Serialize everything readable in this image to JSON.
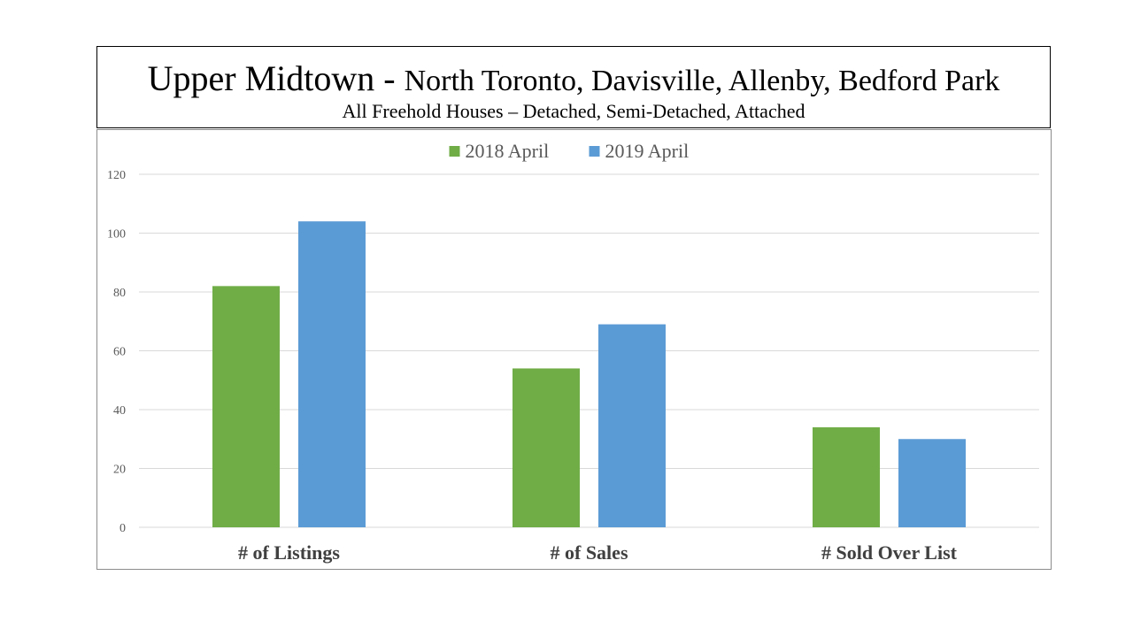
{
  "header": {
    "title_main": "Upper Midtown - ",
    "title_rest": "North Toronto, Davisville, Allenby, Bedford Park",
    "subtitle": "All Freehold Houses – Detached, Semi-Detached, Attached"
  },
  "chart_data": {
    "type": "bar",
    "title": "Upper Midtown - North Toronto, Davisville, Allenby, Bedford Park",
    "subtitle": "All Freehold Houses – Detached, Semi-Detached, Attached",
    "categories": [
      "# of Listings",
      "# of Sales",
      "# Sold Over List"
    ],
    "series": [
      {
        "name": "2018 April",
        "values": [
          82,
          54,
          34
        ],
        "color": "#70ad47"
      },
      {
        "name": "2019 April",
        "values": [
          104,
          69,
          30
        ],
        "color": "#5b9bd5"
      }
    ],
    "ylim": [
      0,
      120
    ],
    "yticks": [
      0,
      20,
      40,
      60,
      80,
      100,
      120
    ],
    "xlabel": "",
    "ylabel": "",
    "grid": true,
    "legend": "top-center",
    "gridline_color": "#d9d9d9"
  }
}
